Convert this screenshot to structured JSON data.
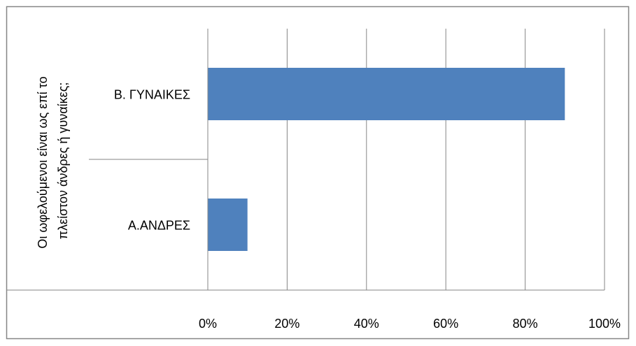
{
  "chart_data": {
    "type": "bar",
    "orientation": "horizontal",
    "group_label": "Οι ωφελούμενοι είναι ως επί το πλείστον άνδρες ή γυναίκες;",
    "group_label_lines": [
      "Οι ωφελούμενοι είναι ως επί το",
      "πλείστον άνδρες ή γυναίκες;"
    ],
    "categories": [
      "Β. ΓΥΝΑΙΚΕΣ",
      "Α.ΑΝΔΡΕΣ"
    ],
    "values": [
      90,
      10
    ],
    "xlim": [
      0,
      100
    ],
    "xticks": [
      0,
      20,
      40,
      60,
      80,
      100
    ],
    "xtick_labels": [
      "0%",
      "20%",
      "40%",
      "60%",
      "80%",
      "100%"
    ],
    "grid": "vertical",
    "legend": "none",
    "colors": {
      "bar": "#4f81bd",
      "grid": "#868686",
      "border": "#868686"
    }
  }
}
